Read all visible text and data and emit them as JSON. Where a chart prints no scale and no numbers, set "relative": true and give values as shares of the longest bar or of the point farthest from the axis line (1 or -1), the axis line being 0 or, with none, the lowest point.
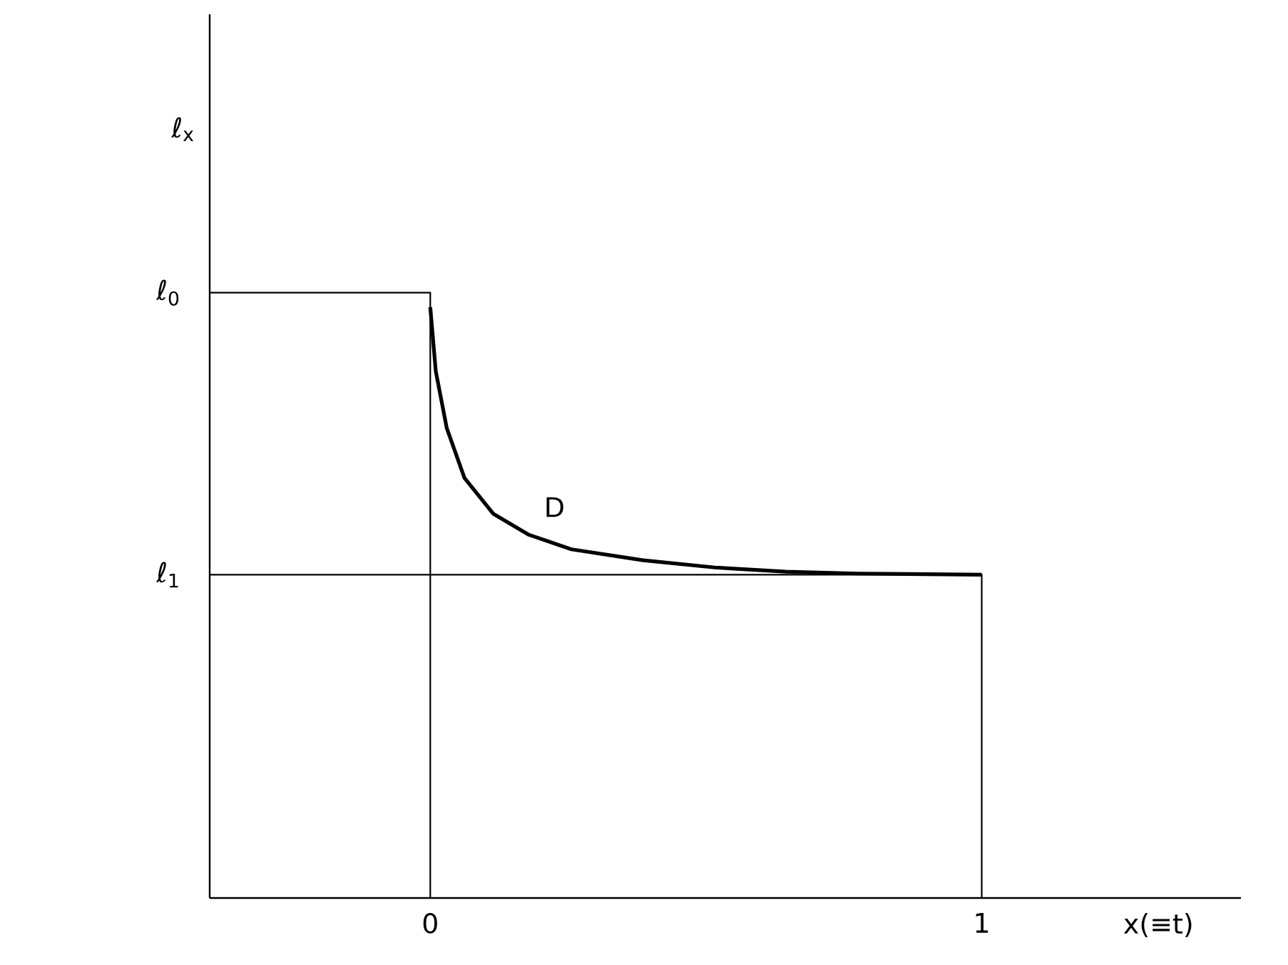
{
  "chart_data": {
    "type": "line",
    "relative": true,
    "xlabel": "x(≡t)",
    "xlim": [
      -0.4,
      1.47
    ],
    "xticks": [
      0,
      1
    ],
    "grid": false,
    "marker": "none",
    "line_style": "solid",
    "series": [
      {
        "color": "#000000",
        "x": [
          -0.4,
          0,
          0
        ],
        "values": [
          1,
          1,
          0
        ]
      },
      {
        "name": "D",
        "color": "#000000",
        "x": [
          0,
          0.01,
          0.03,
          0.062,
          0.114,
          0.179,
          0.256,
          0.386,
          0.516,
          0.645,
          0.775,
          1.0
        ],
        "values": [
          0.976,
          0.87,
          0.776,
          0.694,
          0.635,
          0.6,
          0.576,
          0.558,
          0.546,
          0.539,
          0.536,
          0.534
        ]
      },
      {
        "color": "#000000",
        "x": [
          -0.4,
          1,
          1
        ],
        "values": [
          0.534,
          0.534,
          0
        ]
      }
    ],
    "annotations": [
      {
        "text": "ℓ$_{0}$",
        "x": -0.4,
        "y": 1
      },
      {
        "text": "ℓ$_{1}$",
        "x": -0.4,
        "y": 0.534
      },
      "ℓ$_{x}$"
    ]
  }
}
